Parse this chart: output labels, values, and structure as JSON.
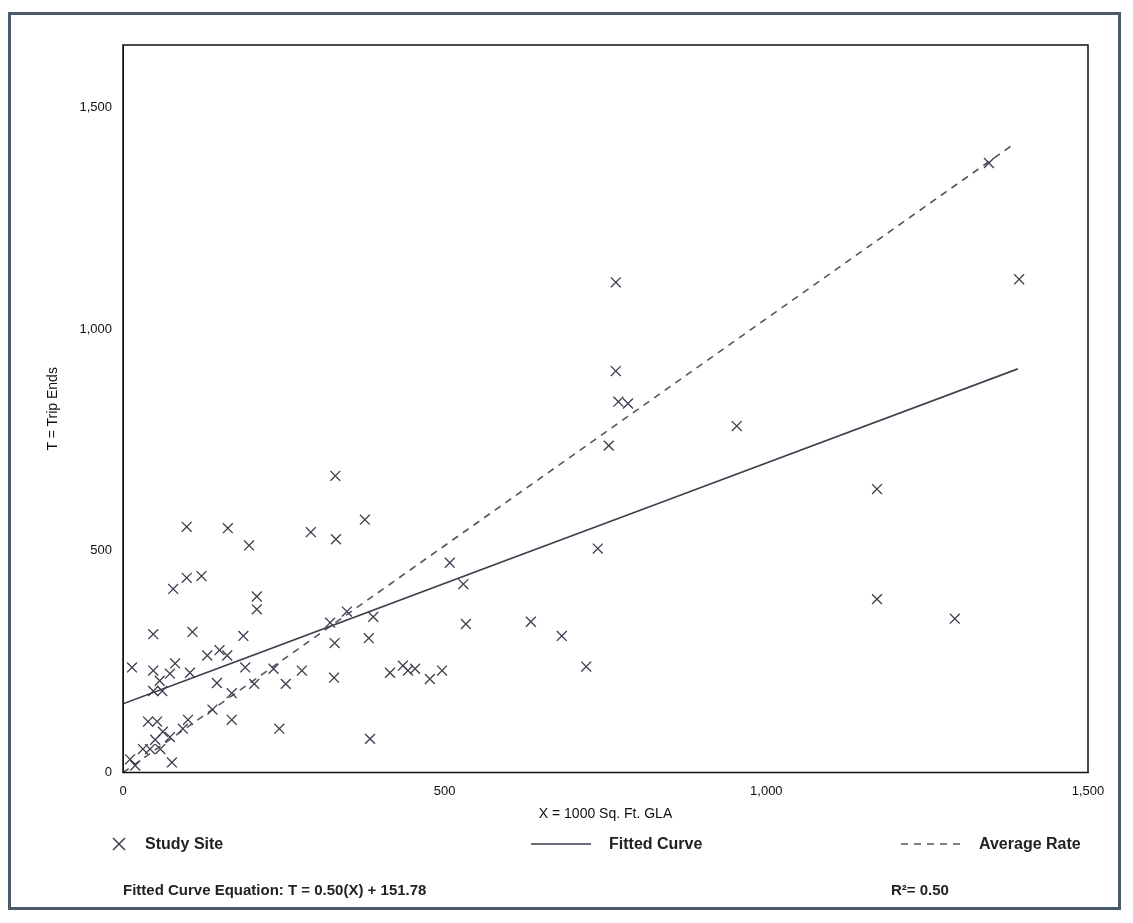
{
  "chart_data": {
    "type": "scatter",
    "xlabel": "X = 1000 Sq. Ft. GLA",
    "ylabel": "T = Trip Ends",
    "xlim": [
      0,
      1500
    ],
    "ylim": [
      0,
      1640
    ],
    "xticks": [
      0,
      500,
      {
        "value": 1000,
        "label": "1,000"
      },
      {
        "value": 1500,
        "label": "1,500"
      }
    ],
    "yticks": [
      0,
      500,
      {
        "value": 1000,
        "label": "1,000"
      },
      {
        "value": 1500,
        "label": "1,500"
      }
    ],
    "grid": false,
    "legend": "bottom",
    "series": [
      {
        "name": "Study Site",
        "marker": "cross",
        "color": "#3d3d4d",
        "x": [
          1346,
          1393,
          766,
          766,
          770,
          785,
          755,
          954,
          1172,
          738,
          1172,
          1293,
          330,
          376,
          292,
          331,
          508,
          529,
          533,
          634,
          682,
          720,
          348,
          389,
          322,
          329,
          382,
          328,
          415,
          435,
          443,
          454,
          477,
          496,
          384,
          243,
          278,
          253,
          234,
          204,
          99,
          163,
          196,
          78,
          99,
          122,
          208,
          208,
          47,
          108,
          187,
          14,
          47,
          81,
          73,
          57,
          47,
          61,
          104,
          131,
          150,
          162,
          146,
          190,
          169,
          139,
          101,
          93,
          169,
          39,
          53,
          62,
          73,
          50,
          42,
          58,
          31,
          76,
          11,
          19
        ],
        "values": [
          1374,
          1112,
          1105,
          905,
          836,
          832,
          737,
          781,
          639,
          505,
          391,
          347,
          669,
          570,
          542,
          526,
          473,
          425,
          335,
          340,
          308,
          239,
          363,
          351,
          338,
          292,
          303,
          214,
          225,
          241,
          230,
          234,
          211,
          230,
          76,
          99,
          230,
          200,
          234,
          200,
          554,
          551,
          512,
          414,
          439,
          443,
          397,
          368,
          312,
          317,
          308,
          237,
          230,
          246,
          223,
          207,
          184,
          184,
          225,
          264,
          276,
          264,
          202,
          237,
          179,
          142,
          119,
          99,
          119,
          115,
          115,
          92,
          80,
          74,
          53,
          53,
          53,
          23,
          30,
          16
        ]
      },
      {
        "name": "Fitted Curve",
        "type": "line",
        "marker": "none",
        "line_style": "solid",
        "color": "#3d3d4d",
        "x": [
          0,
          1391
        ],
        "values": [
          155,
          910
        ]
      },
      {
        "name": "Average Rate",
        "type": "line",
        "marker": "none",
        "line_style": "dashed",
        "color": "#55555f",
        "x": [
          0,
          1383
        ],
        "values": [
          0,
          1415
        ]
      }
    ],
    "annotations": [
      "Fitted Curve Equation: T = 0.50(X) + 151.78",
      "R²= 0.50"
    ]
  }
}
